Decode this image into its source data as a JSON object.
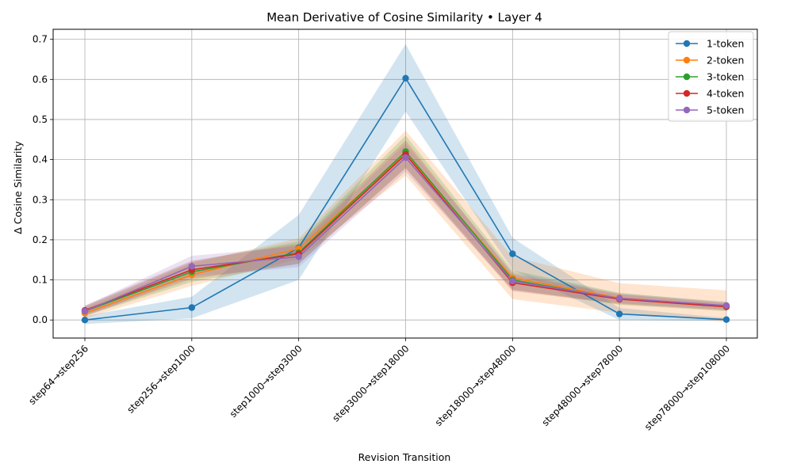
{
  "chart_data": {
    "type": "line",
    "title": "Mean Derivative of Cosine Similarity • Layer 4",
    "xlabel": "Revision Transition",
    "ylabel": "Δ Cosine Similarity",
    "categories": [
      "step64→step256",
      "step256→step1000",
      "step1000→step3000",
      "step3000→step18000",
      "step18000→step48000",
      "step48000→step78000",
      "step78000→step108000"
    ],
    "ylim": [
      -0.045,
      0.725
    ],
    "yticks": [
      0.0,
      0.1,
      0.2,
      0.3,
      0.4,
      0.5,
      0.6,
      0.7
    ],
    "ytick_labels": [
      "0.0",
      "0.1",
      "0.2",
      "0.3",
      "0.4",
      "0.5",
      "0.6",
      "0.7"
    ],
    "grid": true,
    "legend_position": "top-right",
    "series": [
      {
        "name": "1-token",
        "color": "#1f77b4",
        "values": [
          0.0,
          0.031,
          0.18,
          0.603,
          0.165,
          0.015,
          0.001
        ],
        "lower": [
          -0.01,
          0.004,
          0.1,
          0.52,
          0.125,
          0.0,
          -0.003
        ],
        "upper": [
          0.01,
          0.058,
          0.262,
          0.688,
          0.205,
          0.03,
          0.005
        ]
      },
      {
        "name": "2-token",
        "color": "#ff7f0e",
        "values": [
          0.017,
          0.113,
          0.178,
          0.415,
          0.105,
          0.055,
          0.035
        ],
        "lower": [
          0.004,
          0.085,
          0.152,
          0.36,
          0.052,
          0.018,
          -0.004
        ],
        "upper": [
          0.03,
          0.142,
          0.204,
          0.472,
          0.158,
          0.092,
          0.074
        ]
      },
      {
        "name": "3-token",
        "color": "#2ca02c",
        "values": [
          0.022,
          0.12,
          0.168,
          0.42,
          0.1,
          0.053,
          0.033
        ],
        "lower": [
          0.01,
          0.095,
          0.14,
          0.38,
          0.076,
          0.038,
          0.022
        ],
        "upper": [
          0.034,
          0.145,
          0.196,
          0.46,
          0.124,
          0.068,
          0.044
        ]
      },
      {
        "name": "4-token",
        "color": "#d62728",
        "values": [
          0.024,
          0.125,
          0.165,
          0.413,
          0.093,
          0.052,
          0.033
        ],
        "lower": [
          0.012,
          0.102,
          0.14,
          0.378,
          0.072,
          0.04,
          0.024
        ],
        "upper": [
          0.036,
          0.148,
          0.19,
          0.448,
          0.114,
          0.064,
          0.042
        ]
      },
      {
        "name": "5-token",
        "color": "#9467bd",
        "values": [
          0.022,
          0.134,
          0.158,
          0.405,
          0.097,
          0.054,
          0.036
        ],
        "lower": [
          0.009,
          0.108,
          0.132,
          0.37,
          0.075,
          0.042,
          0.026
        ],
        "upper": [
          0.035,
          0.16,
          0.184,
          0.44,
          0.119,
          0.066,
          0.046
        ]
      }
    ]
  }
}
